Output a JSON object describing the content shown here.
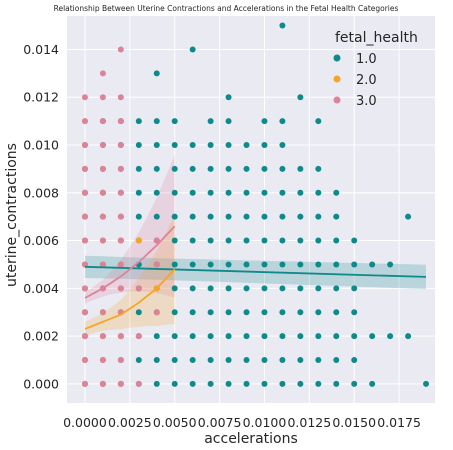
{
  "chart_data": {
    "type": "scatter",
    "title": "Relationship Between Uterine Contractions and Accelerations in the Fetal Health Categories",
    "xlabel": "accelerations",
    "ylabel": "uterine_contractions",
    "xlim": [
      -0.001,
      0.0195
    ],
    "ylim": [
      -0.0008,
      0.0154
    ],
    "x_ticks": [
      0.0,
      0.0025,
      0.005,
      0.0075,
      0.01,
      0.0125,
      0.015,
      0.0175
    ],
    "x_tick_labels": [
      "0.0000",
      "0.0025",
      "0.0050",
      "0.0075",
      "0.0100",
      "0.0125",
      "0.0150",
      "0.0175"
    ],
    "y_ticks": [
      0.0,
      0.002,
      0.004,
      0.006,
      0.008,
      0.01,
      0.012,
      0.014
    ],
    "y_tick_labels": [
      "0.000",
      "0.002",
      "0.004",
      "0.006",
      "0.008",
      "0.010",
      "0.012",
      "0.014"
    ],
    "grid": true,
    "legend": {
      "title": "fetal_health",
      "placement": "top-right"
    },
    "series": [
      {
        "name": "1.0",
        "color": "#0f8a8a",
        "points": [
          [
            0.0,
            0.0
          ],
          [
            0.001,
            0.0
          ],
          [
            0.002,
            0.0
          ],
          [
            0.003,
            0.0
          ],
          [
            0.004,
            0.0
          ],
          [
            0.005,
            0.0
          ],
          [
            0.006,
            0.0
          ],
          [
            0.007,
            0.0
          ],
          [
            0.008,
            0.0
          ],
          [
            0.009,
            0.0
          ],
          [
            0.01,
            0.0
          ],
          [
            0.011,
            0.0
          ],
          [
            0.012,
            0.0
          ],
          [
            0.013,
            0.0
          ],
          [
            0.014,
            0.0
          ],
          [
            0.015,
            0.0
          ],
          [
            0.016,
            0.0
          ],
          [
            0.019,
            0.0
          ],
          [
            0.0,
            0.001
          ],
          [
            0.001,
            0.001
          ],
          [
            0.002,
            0.001
          ],
          [
            0.003,
            0.001
          ],
          [
            0.004,
            0.001
          ],
          [
            0.005,
            0.001
          ],
          [
            0.006,
            0.001
          ],
          [
            0.007,
            0.001
          ],
          [
            0.008,
            0.001
          ],
          [
            0.009,
            0.001
          ],
          [
            0.01,
            0.001
          ],
          [
            0.011,
            0.001
          ],
          [
            0.012,
            0.001
          ],
          [
            0.013,
            0.001
          ],
          [
            0.014,
            0.001
          ],
          [
            0.015,
            0.001
          ],
          [
            0.0,
            0.002
          ],
          [
            0.001,
            0.002
          ],
          [
            0.002,
            0.002
          ],
          [
            0.003,
            0.002
          ],
          [
            0.004,
            0.002
          ],
          [
            0.005,
            0.002
          ],
          [
            0.006,
            0.002
          ],
          [
            0.007,
            0.002
          ],
          [
            0.008,
            0.002
          ],
          [
            0.009,
            0.002
          ],
          [
            0.01,
            0.002
          ],
          [
            0.011,
            0.002
          ],
          [
            0.012,
            0.002
          ],
          [
            0.013,
            0.002
          ],
          [
            0.014,
            0.002
          ],
          [
            0.015,
            0.002
          ],
          [
            0.016,
            0.002
          ],
          [
            0.017,
            0.002
          ],
          [
            0.018,
            0.002
          ],
          [
            0.0,
            0.003
          ],
          [
            0.001,
            0.003
          ],
          [
            0.002,
            0.003
          ],
          [
            0.003,
            0.003
          ],
          [
            0.004,
            0.003
          ],
          [
            0.005,
            0.003
          ],
          [
            0.006,
            0.003
          ],
          [
            0.007,
            0.003
          ],
          [
            0.008,
            0.003
          ],
          [
            0.009,
            0.003
          ],
          [
            0.01,
            0.003
          ],
          [
            0.011,
            0.003
          ],
          [
            0.012,
            0.003
          ],
          [
            0.013,
            0.003
          ],
          [
            0.014,
            0.003
          ],
          [
            0.015,
            0.003
          ],
          [
            0.0,
            0.004
          ],
          [
            0.001,
            0.004
          ],
          [
            0.002,
            0.004
          ],
          [
            0.003,
            0.004
          ],
          [
            0.004,
            0.004
          ],
          [
            0.005,
            0.004
          ],
          [
            0.006,
            0.004
          ],
          [
            0.007,
            0.004
          ],
          [
            0.008,
            0.004
          ],
          [
            0.009,
            0.004
          ],
          [
            0.01,
            0.004
          ],
          [
            0.011,
            0.004
          ],
          [
            0.012,
            0.004
          ],
          [
            0.013,
            0.004
          ],
          [
            0.014,
            0.004
          ],
          [
            0.015,
            0.004
          ],
          [
            0.0,
            0.005
          ],
          [
            0.001,
            0.005
          ],
          [
            0.002,
            0.005
          ],
          [
            0.003,
            0.005
          ],
          [
            0.004,
            0.005
          ],
          [
            0.005,
            0.005
          ],
          [
            0.006,
            0.005
          ],
          [
            0.007,
            0.005
          ],
          [
            0.008,
            0.005
          ],
          [
            0.009,
            0.005
          ],
          [
            0.01,
            0.005
          ],
          [
            0.011,
            0.005
          ],
          [
            0.012,
            0.005
          ],
          [
            0.013,
            0.005
          ],
          [
            0.014,
            0.005
          ],
          [
            0.015,
            0.005
          ],
          [
            0.016,
            0.005
          ],
          [
            0.017,
            0.005
          ],
          [
            0.0,
            0.006
          ],
          [
            0.001,
            0.006
          ],
          [
            0.002,
            0.006
          ],
          [
            0.003,
            0.006
          ],
          [
            0.004,
            0.006
          ],
          [
            0.005,
            0.006
          ],
          [
            0.006,
            0.006
          ],
          [
            0.007,
            0.006
          ],
          [
            0.008,
            0.006
          ],
          [
            0.009,
            0.006
          ],
          [
            0.01,
            0.006
          ],
          [
            0.011,
            0.006
          ],
          [
            0.012,
            0.006
          ],
          [
            0.013,
            0.006
          ],
          [
            0.014,
            0.006
          ],
          [
            0.015,
            0.006
          ],
          [
            0.0,
            0.007
          ],
          [
            0.001,
            0.007
          ],
          [
            0.002,
            0.007
          ],
          [
            0.003,
            0.007
          ],
          [
            0.004,
            0.007
          ],
          [
            0.005,
            0.007
          ],
          [
            0.006,
            0.007
          ],
          [
            0.007,
            0.007
          ],
          [
            0.008,
            0.007
          ],
          [
            0.009,
            0.007
          ],
          [
            0.01,
            0.007
          ],
          [
            0.011,
            0.007
          ],
          [
            0.012,
            0.007
          ],
          [
            0.013,
            0.007
          ],
          [
            0.014,
            0.007
          ],
          [
            0.018,
            0.007
          ],
          [
            0.0,
            0.008
          ],
          [
            0.001,
            0.008
          ],
          [
            0.002,
            0.008
          ],
          [
            0.003,
            0.008
          ],
          [
            0.004,
            0.008
          ],
          [
            0.005,
            0.008
          ],
          [
            0.006,
            0.008
          ],
          [
            0.007,
            0.008
          ],
          [
            0.008,
            0.008
          ],
          [
            0.009,
            0.008
          ],
          [
            0.01,
            0.008
          ],
          [
            0.011,
            0.008
          ],
          [
            0.012,
            0.008
          ],
          [
            0.013,
            0.008
          ],
          [
            0.014,
            0.008
          ],
          [
            0.0,
            0.009
          ],
          [
            0.001,
            0.009
          ],
          [
            0.002,
            0.009
          ],
          [
            0.003,
            0.009
          ],
          [
            0.004,
            0.009
          ],
          [
            0.005,
            0.009
          ],
          [
            0.006,
            0.009
          ],
          [
            0.007,
            0.009
          ],
          [
            0.008,
            0.009
          ],
          [
            0.009,
            0.009
          ],
          [
            0.01,
            0.009
          ],
          [
            0.011,
            0.009
          ],
          [
            0.012,
            0.009
          ],
          [
            0.013,
            0.009
          ],
          [
            0.0,
            0.01
          ],
          [
            0.001,
            0.01
          ],
          [
            0.002,
            0.01
          ],
          [
            0.003,
            0.01
          ],
          [
            0.004,
            0.01
          ],
          [
            0.005,
            0.01
          ],
          [
            0.006,
            0.01
          ],
          [
            0.007,
            0.01
          ],
          [
            0.008,
            0.01
          ],
          [
            0.009,
            0.01
          ],
          [
            0.01,
            0.01
          ],
          [
            0.011,
            0.01
          ],
          [
            0.001,
            0.011
          ],
          [
            0.002,
            0.011
          ],
          [
            0.003,
            0.011
          ],
          [
            0.004,
            0.011
          ],
          [
            0.005,
            0.011
          ],
          [
            0.007,
            0.011
          ],
          [
            0.008,
            0.011
          ],
          [
            0.01,
            0.011
          ],
          [
            0.011,
            0.011
          ],
          [
            0.013,
            0.011
          ],
          [
            0.008,
            0.012
          ],
          [
            0.012,
            0.012
          ],
          [
            0.004,
            0.013
          ],
          [
            0.006,
            0.014
          ],
          [
            0.011,
            0.015
          ]
        ],
        "regression": {
          "x": [
            0.0,
            0.019
          ],
          "y": [
            0.0049,
            0.00448
          ]
        }
      },
      {
        "name": "2.0",
        "color": "#f5a623",
        "points": [
          [
            0.0,
            0.0
          ],
          [
            0.001,
            0.0
          ],
          [
            0.002,
            0.0
          ],
          [
            0.0,
            0.001
          ],
          [
            0.001,
            0.001
          ],
          [
            0.0,
            0.002
          ],
          [
            0.001,
            0.002
          ],
          [
            0.002,
            0.002
          ],
          [
            0.0,
            0.003
          ],
          [
            0.001,
            0.003
          ],
          [
            0.002,
            0.003
          ],
          [
            0.004,
            0.003
          ],
          [
            0.0,
            0.004
          ],
          [
            0.001,
            0.004
          ],
          [
            0.002,
            0.004
          ],
          [
            0.004,
            0.004
          ],
          [
            0.0,
            0.005
          ],
          [
            0.001,
            0.005
          ],
          [
            0.002,
            0.005
          ],
          [
            0.0,
            0.006
          ],
          [
            0.001,
            0.006
          ],
          [
            0.002,
            0.006
          ],
          [
            0.003,
            0.006
          ],
          [
            0.0,
            0.007
          ],
          [
            0.001,
            0.007
          ],
          [
            0.002,
            0.007
          ],
          [
            0.0,
            0.008
          ],
          [
            0.001,
            0.008
          ],
          [
            0.0,
            0.009
          ],
          [
            0.001,
            0.009
          ],
          [
            0.0,
            0.01
          ],
          [
            0.0,
            0.011
          ]
        ],
        "regression": {
          "x": [
            0.0,
            0.001,
            0.002,
            0.003,
            0.004,
            0.005
          ],
          "y": [
            0.0023,
            0.0026,
            0.0029,
            0.0034,
            0.004,
            0.0048
          ]
        }
      },
      {
        "name": "3.0",
        "color": "#dd8399",
        "points": [
          [
            0.0,
            0.0
          ],
          [
            0.001,
            0.0
          ],
          [
            0.002,
            0.0
          ],
          [
            0.003,
            0.0
          ],
          [
            0.0,
            0.001
          ],
          [
            0.001,
            0.001
          ],
          [
            0.002,
            0.001
          ],
          [
            0.0,
            0.002
          ],
          [
            0.001,
            0.002
          ],
          [
            0.002,
            0.002
          ],
          [
            0.003,
            0.002
          ],
          [
            0.0,
            0.003
          ],
          [
            0.001,
            0.003
          ],
          [
            0.002,
            0.003
          ],
          [
            0.004,
            0.003
          ],
          [
            0.0,
            0.004
          ],
          [
            0.001,
            0.004
          ],
          [
            0.002,
            0.004
          ],
          [
            0.003,
            0.004
          ],
          [
            0.0,
            0.005
          ],
          [
            0.001,
            0.005
          ],
          [
            0.002,
            0.005
          ],
          [
            0.004,
            0.005
          ],
          [
            0.0,
            0.006
          ],
          [
            0.001,
            0.006
          ],
          [
            0.002,
            0.006
          ],
          [
            0.004,
            0.006
          ],
          [
            0.0,
            0.007
          ],
          [
            0.001,
            0.007
          ],
          [
            0.002,
            0.007
          ],
          [
            0.0,
            0.008
          ],
          [
            0.001,
            0.008
          ],
          [
            0.002,
            0.008
          ],
          [
            0.0,
            0.009
          ],
          [
            0.001,
            0.009
          ],
          [
            0.002,
            0.009
          ],
          [
            0.0,
            0.01
          ],
          [
            0.001,
            0.01
          ],
          [
            0.002,
            0.01
          ],
          [
            0.0,
            0.011
          ],
          [
            0.001,
            0.011
          ],
          [
            0.002,
            0.011
          ],
          [
            0.0,
            0.012
          ],
          [
            0.001,
            0.012
          ],
          [
            0.002,
            0.012
          ],
          [
            0.001,
            0.013
          ],
          [
            0.002,
            0.014
          ]
        ],
        "regression": {
          "x": [
            0.0,
            0.001,
            0.002,
            0.003,
            0.004,
            0.005
          ],
          "y": [
            0.0036,
            0.004,
            0.0045,
            0.0051,
            0.0058,
            0.0066
          ]
        }
      }
    ]
  }
}
